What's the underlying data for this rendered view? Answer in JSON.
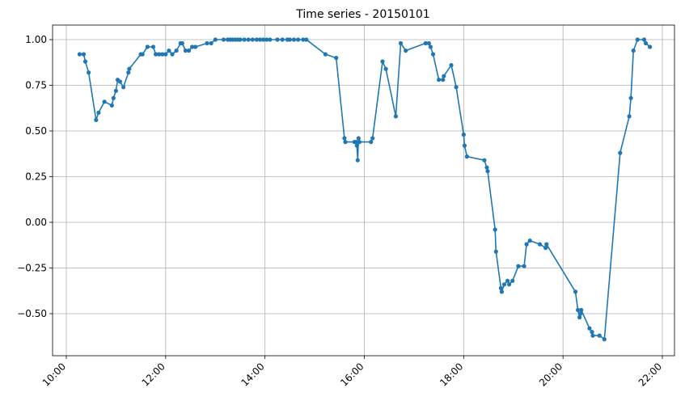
{
  "chart_data": {
    "type": "line",
    "title": "Time series - 20150101",
    "xlabel": "",
    "ylabel": "",
    "grid": true,
    "x_domain": [
      "10:00",
      "22:00"
    ],
    "ylim": [
      -0.7,
      1.08
    ],
    "x_ticks": [
      "10:00",
      "12:00",
      "14:00",
      "16:00",
      "18:00",
      "20:00",
      "22:00"
    ],
    "y_ticks": [
      "1.00",
      "0.75",
      "0.50",
      "0.25",
      "0.00",
      "−0.25",
      "−0.50"
    ],
    "y_tick_values": [
      1.0,
      0.75,
      0.5,
      0.25,
      0.0,
      -0.25,
      -0.5
    ],
    "series": [
      {
        "color": "#1f77b4",
        "marker": "circle",
        "points": [
          [
            "10:16",
            0.92
          ],
          [
            "10:21",
            0.92
          ],
          [
            "10:23",
            0.88
          ],
          [
            "10:27",
            0.82
          ],
          [
            "10:36",
            0.56
          ],
          [
            "10:39",
            0.6
          ],
          [
            "10:46",
            0.66
          ],
          [
            "10:55",
            0.64
          ],
          [
            "10:57",
            0.68
          ],
          [
            "11:00",
            0.72
          ],
          [
            "11:02",
            0.78
          ],
          [
            "11:05",
            0.77
          ],
          [
            "11:09",
            0.74
          ],
          [
            "11:15",
            0.82
          ],
          [
            "11:16",
            0.84
          ],
          [
            "11:30",
            0.92
          ],
          [
            "11:32",
            0.92
          ],
          [
            "11:38",
            0.96
          ],
          [
            "11:45",
            0.96
          ],
          [
            "11:48",
            0.92
          ],
          [
            "11:52",
            0.92
          ],
          [
            "11:56",
            0.92
          ],
          [
            "12:00",
            0.92
          ],
          [
            "12:04",
            0.94
          ],
          [
            "12:08",
            0.92
          ],
          [
            "12:13",
            0.94
          ],
          [
            "12:18",
            0.98
          ],
          [
            "12:20",
            0.98
          ],
          [
            "12:24",
            0.94
          ],
          [
            "12:28",
            0.94
          ],
          [
            "12:32",
            0.96
          ],
          [
            "12:36",
            0.96
          ],
          [
            "12:50",
            0.98
          ],
          [
            "12:55",
            0.98
          ],
          [
            "13:00",
            1.0
          ],
          [
            "13:10",
            1.0
          ],
          [
            "13:15",
            1.0
          ],
          [
            "13:18",
            1.0
          ],
          [
            "13:21",
            1.0
          ],
          [
            "13:24",
            1.0
          ],
          [
            "13:27",
            1.0
          ],
          [
            "13:30",
            1.0
          ],
          [
            "13:35",
            1.0
          ],
          [
            "13:40",
            1.0
          ],
          [
            "13:45",
            1.0
          ],
          [
            "13:50",
            1.0
          ],
          [
            "13:54",
            1.0
          ],
          [
            "13:58",
            1.0
          ],
          [
            "14:02",
            1.0
          ],
          [
            "14:06",
            1.0
          ],
          [
            "14:15",
            1.0
          ],
          [
            "14:21",
            1.0
          ],
          [
            "14:27",
            1.0
          ],
          [
            "14:30",
            1.0
          ],
          [
            "14:35",
            1.0
          ],
          [
            "14:40",
            1.0
          ],
          [
            "14:46",
            1.0
          ],
          [
            "14:50",
            1.0
          ],
          [
            "15:13",
            0.92
          ],
          [
            "15:26",
            0.9
          ],
          [
            "15:36",
            0.46
          ],
          [
            "15:37",
            0.44
          ],
          [
            "15:48",
            0.44
          ],
          [
            "15:50",
            0.44
          ],
          [
            "15:51",
            0.42
          ],
          [
            "15:52",
            0.34
          ],
          [
            "15:53",
            0.46
          ],
          [
            "15:54",
            0.44
          ],
          [
            "16:08",
            0.44
          ],
          [
            "16:10",
            0.46
          ],
          [
            "16:22",
            0.88
          ],
          [
            "16:26",
            0.84
          ],
          [
            "16:38",
            0.58
          ],
          [
            "16:44",
            0.98
          ],
          [
            "16:50",
            0.94
          ],
          [
            "17:14",
            0.98
          ],
          [
            "17:18",
            0.98
          ],
          [
            "17:20",
            0.96
          ],
          [
            "17:23",
            0.92
          ],
          [
            "17:30",
            0.78
          ],
          [
            "17:35",
            0.78
          ],
          [
            "17:36",
            0.8
          ],
          [
            "17:45",
            0.86
          ],
          [
            "17:51",
            0.74
          ],
          [
            "18:00",
            0.48
          ],
          [
            "18:01",
            0.42
          ],
          [
            "18:04",
            0.36
          ],
          [
            "18:25",
            0.34
          ],
          [
            "18:28",
            0.3
          ],
          [
            "18:29",
            0.28
          ],
          [
            "18:38",
            -0.04
          ],
          [
            "18:39",
            -0.16
          ],
          [
            "18:45",
            -0.36
          ],
          [
            "18:46",
            -0.38
          ],
          [
            "18:49",
            -0.34
          ],
          [
            "18:53",
            -0.32
          ],
          [
            "18:55",
            -0.34
          ],
          [
            "18:59",
            -0.32
          ],
          [
            "19:06",
            -0.24
          ],
          [
            "19:13",
            -0.24
          ],
          [
            "19:16",
            -0.12
          ],
          [
            "19:20",
            -0.1
          ],
          [
            "19:32",
            -0.12
          ],
          [
            "19:39",
            -0.14
          ],
          [
            "19:40",
            -0.12
          ],
          [
            "20:15",
            -0.38
          ],
          [
            "20:18",
            -0.48
          ],
          [
            "20:20",
            -0.52
          ],
          [
            "20:21",
            -0.5
          ],
          [
            "20:22",
            -0.48
          ],
          [
            "20:32",
            -0.58
          ],
          [
            "20:35",
            -0.6
          ],
          [
            "20:36",
            -0.62
          ],
          [
            "20:44",
            -0.62
          ],
          [
            "20:50",
            -0.64
          ],
          [
            "21:09",
            0.38
          ],
          [
            "21:20",
            0.58
          ],
          [
            "21:22",
            0.68
          ],
          [
            "21:25",
            0.94
          ],
          [
            "21:30",
            1.0
          ],
          [
            "21:38",
            1.0
          ],
          [
            "21:40",
            0.98
          ],
          [
            "21:45",
            0.96
          ]
        ]
      }
    ]
  }
}
